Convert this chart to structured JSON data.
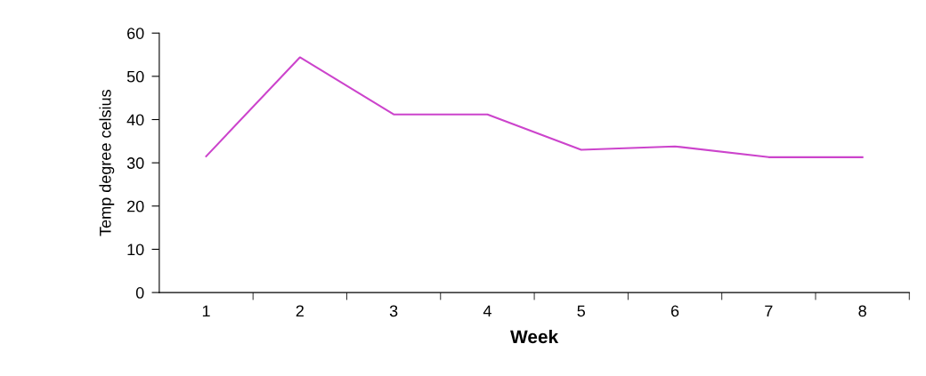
{
  "chart_data": {
    "type": "line",
    "xlabel": "Week",
    "ylabel": "Temp degree celsius",
    "categories": [
      "1",
      "2",
      "3",
      "4",
      "5",
      "6",
      "7",
      "8"
    ],
    "series": [
      {
        "color": "#cc44cc",
        "values": [
          31.5,
          54.4,
          41.2,
          41.2,
          33,
          33.8,
          31.3,
          31.3
        ]
      }
    ],
    "ylim": [
      0,
      60
    ],
    "yticks": [
      0,
      10,
      20,
      30,
      40,
      50,
      60
    ],
    "grid": false,
    "legend": false,
    "marker": "none",
    "line_style": "solid"
  }
}
